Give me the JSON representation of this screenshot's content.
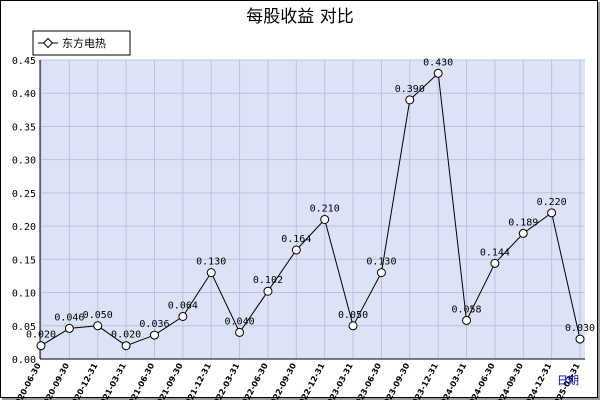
{
  "chart_data": {
    "type": "line",
    "title": "每股收益  对比",
    "xlabel": "日期",
    "ylabel": "",
    "ylim": [
      0,
      0.45
    ],
    "yticks": [
      "0.00",
      "0.05",
      "0.10",
      "0.15",
      "0.20",
      "0.25",
      "0.30",
      "0.35",
      "0.40",
      "0.45"
    ],
    "grid": true,
    "legend_position": "top-left",
    "categories": [
      "2020-06-30",
      "2020-09-30",
      "2020-12-31",
      "2021-03-31",
      "2021-06-30",
      "2021-09-30",
      "2021-12-31",
      "2022-03-31",
      "2022-06-30",
      "2022-09-30",
      "2022-12-31",
      "2023-03-31",
      "2023-06-30",
      "2023-09-30",
      "2023-12-31",
      "2024-03-31",
      "2024-06-30",
      "2024-09-30",
      "2024-12-31",
      "2025-03-31"
    ],
    "series": [
      {
        "name": "东方电热",
        "color": "#000000",
        "values": [
          0.02,
          0.046,
          0.05,
          0.02,
          0.036,
          0.064,
          0.13,
          0.04,
          0.102,
          0.164,
          0.21,
          0.05,
          0.13,
          0.39,
          0.43,
          0.058,
          0.144,
          0.189,
          0.22,
          0.03
        ],
        "labels": [
          "0.020",
          "0.046",
          "0.050",
          "0.020",
          "0.036",
          "0.064",
          "0.130",
          "0.040",
          "0.102",
          "0.164",
          "0.210",
          "0.050",
          "0.130",
          "0.390",
          "0.430",
          "0.058",
          "0.144",
          "0.189",
          "0.220",
          "0.030"
        ]
      }
    ]
  },
  "colors": {
    "plot_bg": "#dde3f7",
    "grid": "#b9c2e0"
  }
}
